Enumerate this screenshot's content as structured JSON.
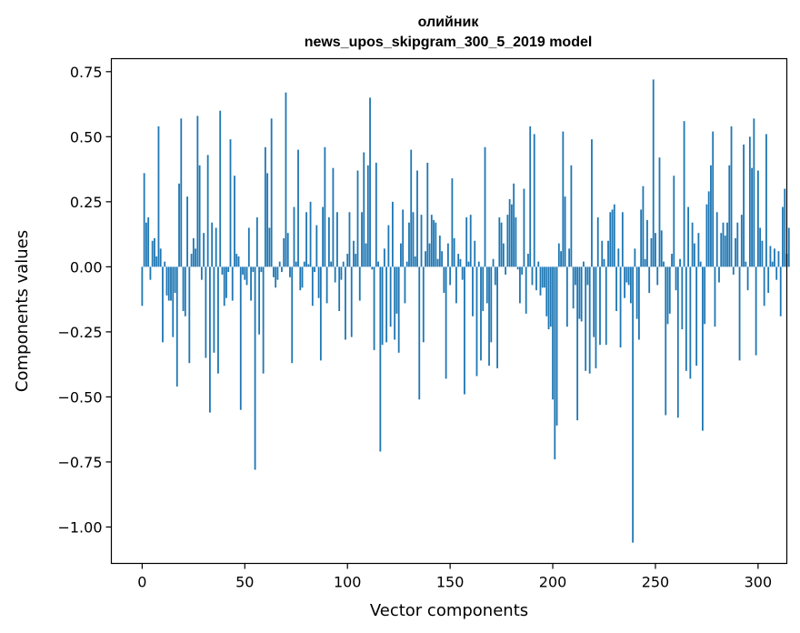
{
  "chart_data": {
    "type": "bar",
    "title": "олийник",
    "subtitle": "news_upos_skipgram_300_5_2019 model",
    "xlabel": "Vector components",
    "ylabel": "Components values",
    "xlim": [
      -15,
      314
    ],
    "ylim": [
      -1.14,
      0.8
    ],
    "xticks": [
      0,
      50,
      100,
      150,
      200,
      250,
      300
    ],
    "yticks": [
      -1.0,
      -0.75,
      -0.5,
      -0.25,
      0.0,
      0.25,
      0.5,
      0.75
    ],
    "xtick_labels": [
      "0",
      "50",
      "100",
      "150",
      "200",
      "250",
      "300"
    ],
    "ytick_labels": [
      "−1.00",
      "−0.75",
      "−0.50",
      "−0.25",
      "0.00",
      "0.25",
      "0.50",
      "0.75"
    ],
    "bar_color": "#1f77b4",
    "values": [
      -0.15,
      0.36,
      0.17,
      0.19,
      -0.05,
      0.1,
      0.11,
      0.04,
      0.54,
      0.07,
      -0.29,
      0.02,
      -0.11,
      -0.13,
      -0.13,
      -0.27,
      -0.1,
      -0.46,
      0.32,
      0.57,
      -0.17,
      -0.19,
      0.27,
      -0.37,
      0.05,
      0.11,
      0.07,
      0.58,
      0.39,
      -0.05,
      0.13,
      -0.35,
      0.43,
      -0.56,
      0.17,
      -0.33,
      0.15,
      -0.41,
      0.6,
      -0.03,
      -0.15,
      -0.12,
      -0.02,
      0.49,
      -0.13,
      0.35,
      0.05,
      0.04,
      -0.55,
      -0.03,
      -0.05,
      -0.07,
      0.15,
      -0.13,
      -0.02,
      -0.78,
      0.19,
      -0.26,
      -0.02,
      -0.41,
      0.46,
      0.36,
      0.15,
      0.57,
      -0.04,
      -0.08,
      -0.05,
      0.02,
      -0.02,
      0.11,
      0.67,
      0.13,
      -0.04,
      -0.37,
      0.23,
      0.02,
      0.45,
      -0.09,
      -0.08,
      0.02,
      0.21,
      0.01,
      0.25,
      -0.15,
      -0.02,
      0.16,
      -0.12,
      -0.36,
      0.23,
      0.46,
      -0.14,
      0.19,
      0.02,
      0.38,
      -0.06,
      0.21,
      -0.17,
      -0.05,
      0.02,
      -0.28,
      0.05,
      0.21,
      -0.27,
      0.1,
      0.05,
      0.37,
      -0.13,
      0.21,
      0.44,
      0.09,
      0.39,
      0.65,
      -0.01,
      -0.32,
      0.4,
      0.02,
      -0.71,
      -0.3,
      0.07,
      -0.29,
      0.16,
      -0.23,
      0.25,
      -0.28,
      -0.18,
      -0.33,
      0.09,
      0.22,
      -0.14,
      0.02,
      0.17,
      0.45,
      0.21,
      0.04,
      0.37,
      -0.51,
      0.2,
      -0.29,
      0.06,
      0.4,
      0.09,
      0.2,
      0.18,
      0.17,
      0.03,
      0.12,
      0.06,
      -0.1,
      -0.43,
      0.09,
      -0.07,
      0.34,
      0.11,
      -0.14,
      0.05,
      0.03,
      -0.05,
      -0.49,
      0.19,
      0.02,
      0.2,
      -0.19,
      0.1,
      -0.42,
      0.02,
      -0.36,
      -0.17,
      0.46,
      -0.14,
      -0.38,
      -0.29,
      0.03,
      -0.07,
      -0.39,
      0.19,
      0.17,
      0.09,
      -0.03,
      0.2,
      0.26,
      0.24,
      0.32,
      0.19,
      -0.01,
      -0.14,
      -0.03,
      0.3,
      -0.18,
      0.05,
      0.54,
      -0.07,
      0.51,
      -0.09,
      0.02,
      -0.11,
      -0.08,
      -0.08,
      -0.19,
      -0.24,
      -0.23,
      -0.51,
      -0.74,
      -0.61,
      0.09,
      0.06,
      0.52,
      0.27,
      -0.23,
      0.07,
      0.39,
      -0.16,
      -0.07,
      -0.59,
      -0.2,
      -0.21,
      0.02,
      -0.4,
      -0.07,
      -0.41,
      0.49,
      -0.27,
      -0.39,
      0.19,
      -0.3,
      0.1,
      0.03,
      -0.3,
      0.1,
      0.21,
      0.22,
      0.24,
      -0.17,
      0.07,
      -0.31,
      0.21,
      -0.12,
      -0.06,
      -0.07,
      -0.14,
      -1.06,
      0.07,
      -0.2,
      -0.28,
      0.22,
      0.31,
      0.03,
      0.18,
      -0.1,
      0.11,
      0.72,
      0.13,
      -0.07,
      0.42,
      0.14,
      0.02,
      -0.57,
      -0.22,
      -0.18,
      0.05,
      0.35,
      -0.09,
      -0.58,
      0.03,
      -0.24,
      0.56,
      -0.4,
      0.23,
      -0.43,
      0.17,
      0.09,
      -0.38,
      0.13,
      0.02,
      -0.63,
      -0.22,
      0.24,
      0.29,
      0.39,
      0.52,
      -0.23,
      0.21,
      -0.06,
      0.13,
      0.17,
      0.12,
      0.17,
      0.39,
      0.54,
      -0.03,
      0.11,
      0.17,
      -0.36,
      0.2,
      0.47,
      0.02,
      -0.09,
      0.5,
      0.38,
      0.57,
      -0.34,
      0.37,
      0.15,
      0.1,
      -0.15,
      0.51,
      -0.1,
      0.08,
      0.02,
      0.07,
      -0.05,
      0.06,
      -0.19,
      0.23,
      0.3,
      0.05,
      0.15
    ]
  }
}
